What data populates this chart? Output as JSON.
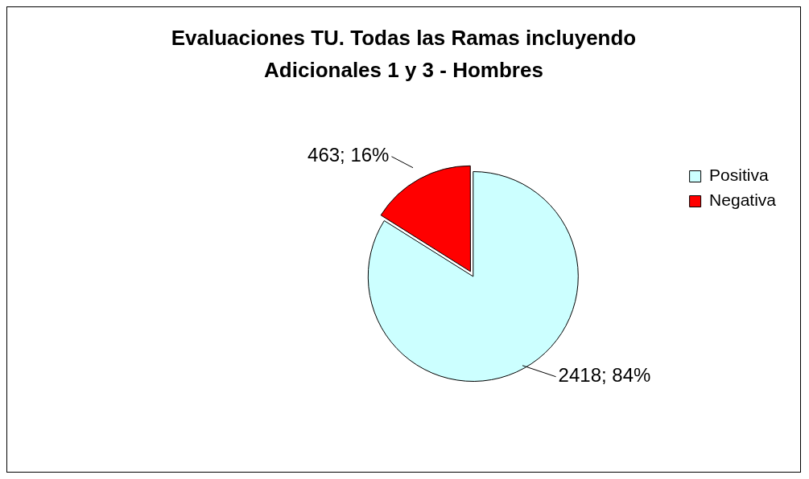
{
  "chart_data": {
    "type": "pie",
    "title": "Evaluaciones TU. Todas las Ramas incluyendo Adicionales 1 y 3 - Hombres",
    "categories": [
      "Positiva",
      "Negativa"
    ],
    "values": [
      2418,
      463
    ],
    "colors": [
      "#ccffff",
      "#ff0000"
    ],
    "value_labels": [
      "2418; 84%",
      "463; 16%"
    ],
    "legend": "top right"
  }
}
